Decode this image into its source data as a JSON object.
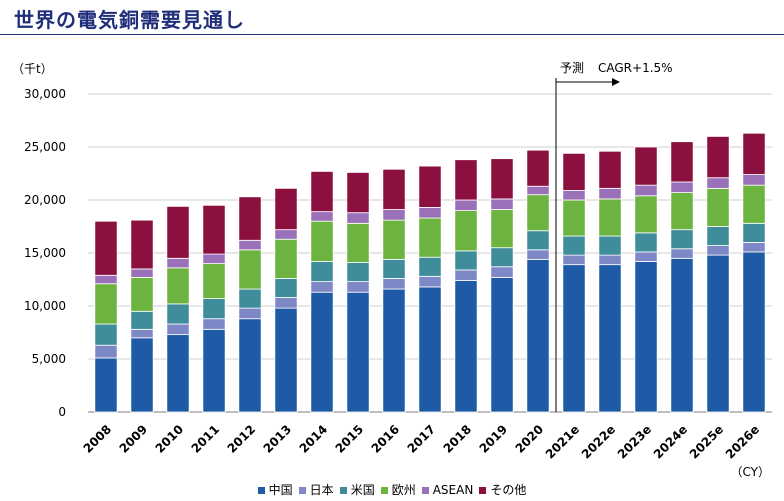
{
  "title": "世界の電気銅需要見通し",
  "unit_label": "（千t）",
  "x_unit_label": "（CY）",
  "forecast_label": "予測",
  "cagr_label": "CAGR+1.5%",
  "chart_data": {
    "type": "bar",
    "stacked": true,
    "categories": [
      "2008",
      "2009",
      "2010",
      "2011",
      "2012",
      "2013",
      "2014",
      "2015",
      "2016",
      "2017",
      "2018",
      "2019",
      "2020",
      "2021e",
      "2022e",
      "2023e",
      "2024e",
      "2025e",
      "2026e"
    ],
    "ylim": [
      0,
      30000
    ],
    "yticks": [
      "0",
      "5,000",
      "10,000",
      "15,000",
      "20,000",
      "25,000",
      "30,000"
    ],
    "ytick_values": [
      0,
      5000,
      10000,
      15000,
      20000,
      25000,
      30000
    ],
    "forecast_divider_after": "2020",
    "series": [
      {
        "name": "中国",
        "color": "#1f5aa6",
        "values": [
          5100,
          7000,
          7300,
          7800,
          8800,
          9800,
          11300,
          11300,
          11600,
          11800,
          12400,
          12700,
          14400,
          13900,
          13900,
          14200,
          14500,
          14800,
          15100
        ]
      },
      {
        "name": "日本",
        "color": "#7f88c7",
        "values": [
          1200,
          800,
          1000,
          1000,
          1000,
          1000,
          1000,
          1000,
          1000,
          1000,
          1000,
          1000,
          900,
          900,
          900,
          900,
          900,
          900,
          900
        ]
      },
      {
        "name": "米国",
        "color": "#3f8d9b",
        "values": [
          2000,
          1700,
          1900,
          1900,
          1800,
          1800,
          1900,
          1800,
          1800,
          1800,
          1800,
          1800,
          1800,
          1800,
          1800,
          1800,
          1800,
          1800,
          1800
        ]
      },
      {
        "name": "欧州",
        "color": "#6db33f",
        "values": [
          3800,
          3200,
          3400,
          3300,
          3700,
          3700,
          3800,
          3700,
          3700,
          3700,
          3800,
          3600,
          3400,
          3400,
          3500,
          3500,
          3500,
          3600,
          3600
        ]
      },
      {
        "name": "ASEAN",
        "color": "#9a70b8",
        "values": [
          800,
          800,
          900,
          900,
          900,
          900,
          900,
          1000,
          1000,
          1000,
          1000,
          1000,
          800,
          900,
          1000,
          1000,
          1000,
          1000,
          1000
        ]
      },
      {
        "name": "その他",
        "color": "#8b0f3f",
        "values": [
          5100,
          4600,
          4900,
          4600,
          4100,
          3900,
          3800,
          3800,
          3800,
          3900,
          3800,
          3800,
          3400,
          3500,
          3500,
          3600,
          3800,
          3900,
          3900
        ]
      }
    ],
    "legend_position": "bottom",
    "grid": true
  }
}
